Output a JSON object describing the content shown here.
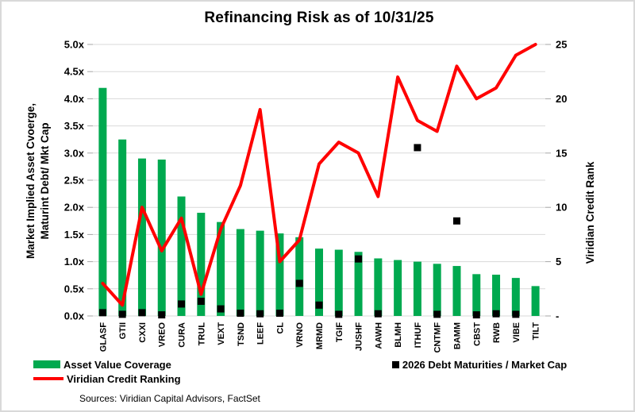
{
  "title": "Refinancing Risk as of 10/31/25",
  "chart_data": {
    "type": "combo",
    "categories": [
      "GLASF",
      "GTII",
      "CXXI",
      "VREO",
      "CURA",
      "TRUL",
      "VEXT",
      "TSND",
      "LEEF",
      "CL",
      "VRNO",
      "MRMD",
      "TGIF",
      "JUSHF",
      "AAWH",
      "BLMH",
      "ITHUF",
      "CNTMF",
      "BAMM",
      "CBST",
      "RWB",
      "VIBE",
      "TILT"
    ],
    "series": [
      {
        "name": "Asset Value Coverage",
        "type": "bar",
        "axis": "left",
        "color": "#00A94F",
        "values": [
          4.2,
          3.25,
          2.9,
          2.88,
          2.2,
          1.9,
          1.73,
          1.6,
          1.57,
          1.52,
          1.45,
          1.24,
          1.22,
          1.18,
          1.06,
          1.03,
          1.0,
          0.96,
          0.92,
          0.77,
          0.76,
          0.7,
          0.55
        ]
      },
      {
        "name": "2026 Debt Maturities / Market Cap",
        "type": "scatter",
        "axis": "left",
        "color": "#000000",
        "values": [
          0.06,
          0.03,
          0.06,
          0.02,
          0.22,
          0.27,
          0.13,
          0.05,
          0.04,
          0.05,
          0.6,
          0.2,
          0.03,
          1.05,
          0.04,
          null,
          3.1,
          0.03,
          1.75,
          0.02,
          0.04,
          0.03,
          null
        ]
      },
      {
        "name": "Viridian Credit Ranking",
        "type": "line",
        "axis": "right",
        "color": "#FF0000",
        "values": [
          3,
          1,
          10,
          6,
          9,
          2,
          8,
          12,
          19,
          5,
          7,
          14,
          16,
          15,
          11,
          22,
          18,
          17,
          23,
          20,
          21,
          24,
          25
        ]
      }
    ],
    "left_axis": {
      "label_lines": [
        "Market Implied Asset Cvoerge,",
        "Maturint Debt/ Mkt Cap"
      ],
      "ticks": [
        "5.0x",
        "4.5x",
        "4.0x",
        "3.5x",
        "3.0x",
        "2.5x",
        "2.0x",
        "1.5x",
        "1.0x",
        "0.5x",
        "0.0x"
      ],
      "min": 0,
      "max": 5
    },
    "right_axis": {
      "label": "Viridian Credit Rank",
      "ticks": [
        "25",
        "20",
        "15",
        "10",
        "5",
        "-"
      ],
      "min": 0,
      "max": 25
    },
    "grid": true,
    "legend_position": "bottom-left"
  },
  "legend": {
    "items": [
      {
        "label": "Asset Value Coverage",
        "swatch": "bar",
        "color": "#00A94F"
      },
      {
        "label": "2026 Debt Maturities / Market Cap",
        "swatch": "square",
        "color": "#000000"
      },
      {
        "label": "Viridian Credit Ranking",
        "swatch": "line",
        "color": "#FF0000"
      }
    ]
  },
  "footer": {
    "sources": "Sources: Viridian Capital Advisors, FactSet"
  },
  "colors": {
    "bar_green": "#00A94F",
    "line_red": "#FF0000",
    "marker_black": "#000000",
    "gridline": "#D9D9D9",
    "tick": "#A6A6A6",
    "border": "#D9D9D9"
  }
}
